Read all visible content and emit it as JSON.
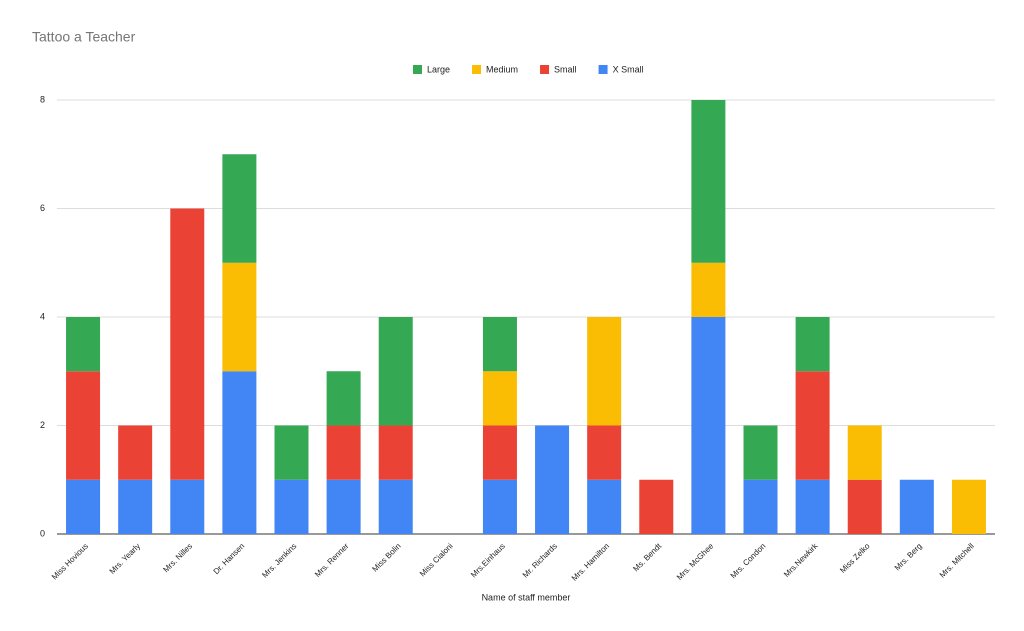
{
  "chart_data": {
    "type": "stacked_bar",
    "title": "Tattoo a Teacher",
    "x_label": "Name of staff member",
    "categories": [
      "Miss Hovious",
      "Mrs. Yearly",
      "Mrs. Nilles",
      "Dr. Hansen",
      "Mrs. Jenkins",
      "Mrs. Renner",
      "Miss Bolin",
      "Miss Cialoni",
      "Mrs.Einhaus",
      "Mr. Richards",
      "Mrs. Hamilton",
      "Ms. Bendt",
      "Mrs. McGhee",
      "Mrs. Condon",
      "Mrs.Newkirk",
      "Miss Zelko",
      "Mrs. Berg",
      "Mrs. Mitchell"
    ],
    "series": [
      {
        "name": "Large",
        "color": "#34a853",
        "values": [
          1,
          0,
          0,
          2,
          1,
          1,
          2,
          0,
          1,
          0,
          0,
          0,
          3,
          1,
          1,
          0,
          0,
          0
        ]
      },
      {
        "name": "Medium",
        "color": "#fbbc04",
        "values": [
          0,
          0,
          0,
          2,
          0,
          0,
          0,
          0,
          1,
          0,
          2,
          0,
          1,
          0,
          0,
          1,
          0,
          1
        ]
      },
      {
        "name": "Small",
        "color": "#ea4335",
        "values": [
          2,
          1,
          5,
          0,
          0,
          1,
          1,
          0,
          1,
          0,
          1,
          1,
          0,
          0,
          2,
          1,
          0,
          0
        ]
      },
      {
        "name": "X Small",
        "color": "#4285f4",
        "values": [
          1,
          1,
          1,
          3,
          1,
          1,
          1,
          0,
          1,
          2,
          1,
          0,
          4,
          1,
          1,
          0,
          1,
          0
        ]
      }
    ],
    "ylim": [
      0,
      8
    ],
    "yticks": [
      0,
      2,
      4,
      6,
      8
    ],
    "grid": true,
    "legend": "top"
  }
}
